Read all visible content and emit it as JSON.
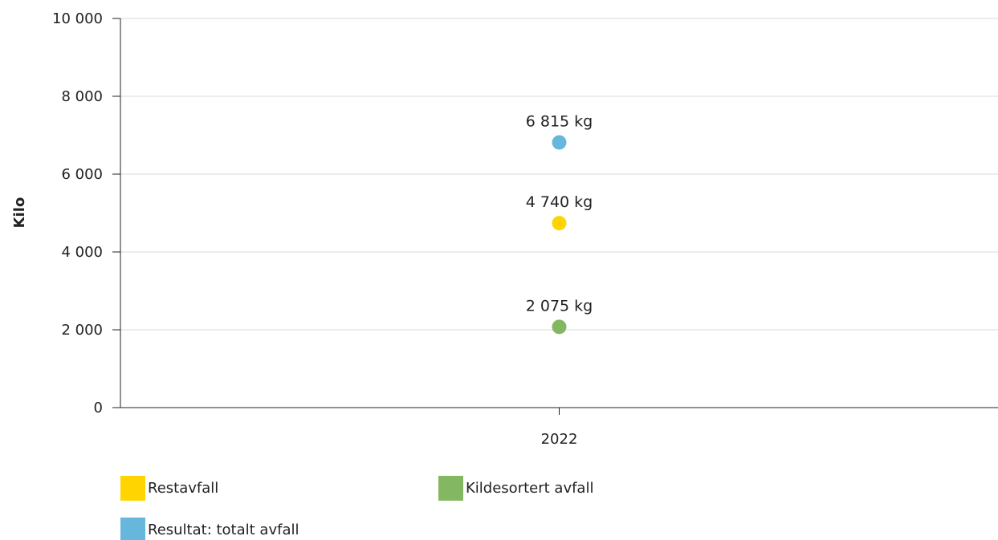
{
  "chart_data": {
    "type": "scatter",
    "title": "",
    "xlabel": "",
    "ylabel": "Kilo",
    "categories": [
      "2022"
    ],
    "ylim": [
      0,
      10000
    ],
    "y_ticks": [
      0,
      2000,
      4000,
      6000,
      8000,
      10000
    ],
    "y_tick_labels": [
      "0",
      "2 000",
      "4 000",
      "6 000",
      "8 000",
      "10 000"
    ],
    "grid": true,
    "legend_position": "bottom",
    "series": [
      {
        "name": "Restavfall",
        "color": "#ffd400",
        "values": [
          4740
        ],
        "data_labels": [
          "4 740 kg"
        ]
      },
      {
        "name": "Kildesortert avfall",
        "color": "#84b761",
        "values": [
          2075
        ],
        "data_labels": [
          "2 075 kg"
        ]
      },
      {
        "name": "Resultat: totalt avfall",
        "color": "#67b7dc",
        "values": [
          6815
        ],
        "data_labels": [
          "6 815 kg"
        ]
      }
    ]
  },
  "colors": {
    "grid": "#d9d9d9",
    "axis": "#222222"
  }
}
